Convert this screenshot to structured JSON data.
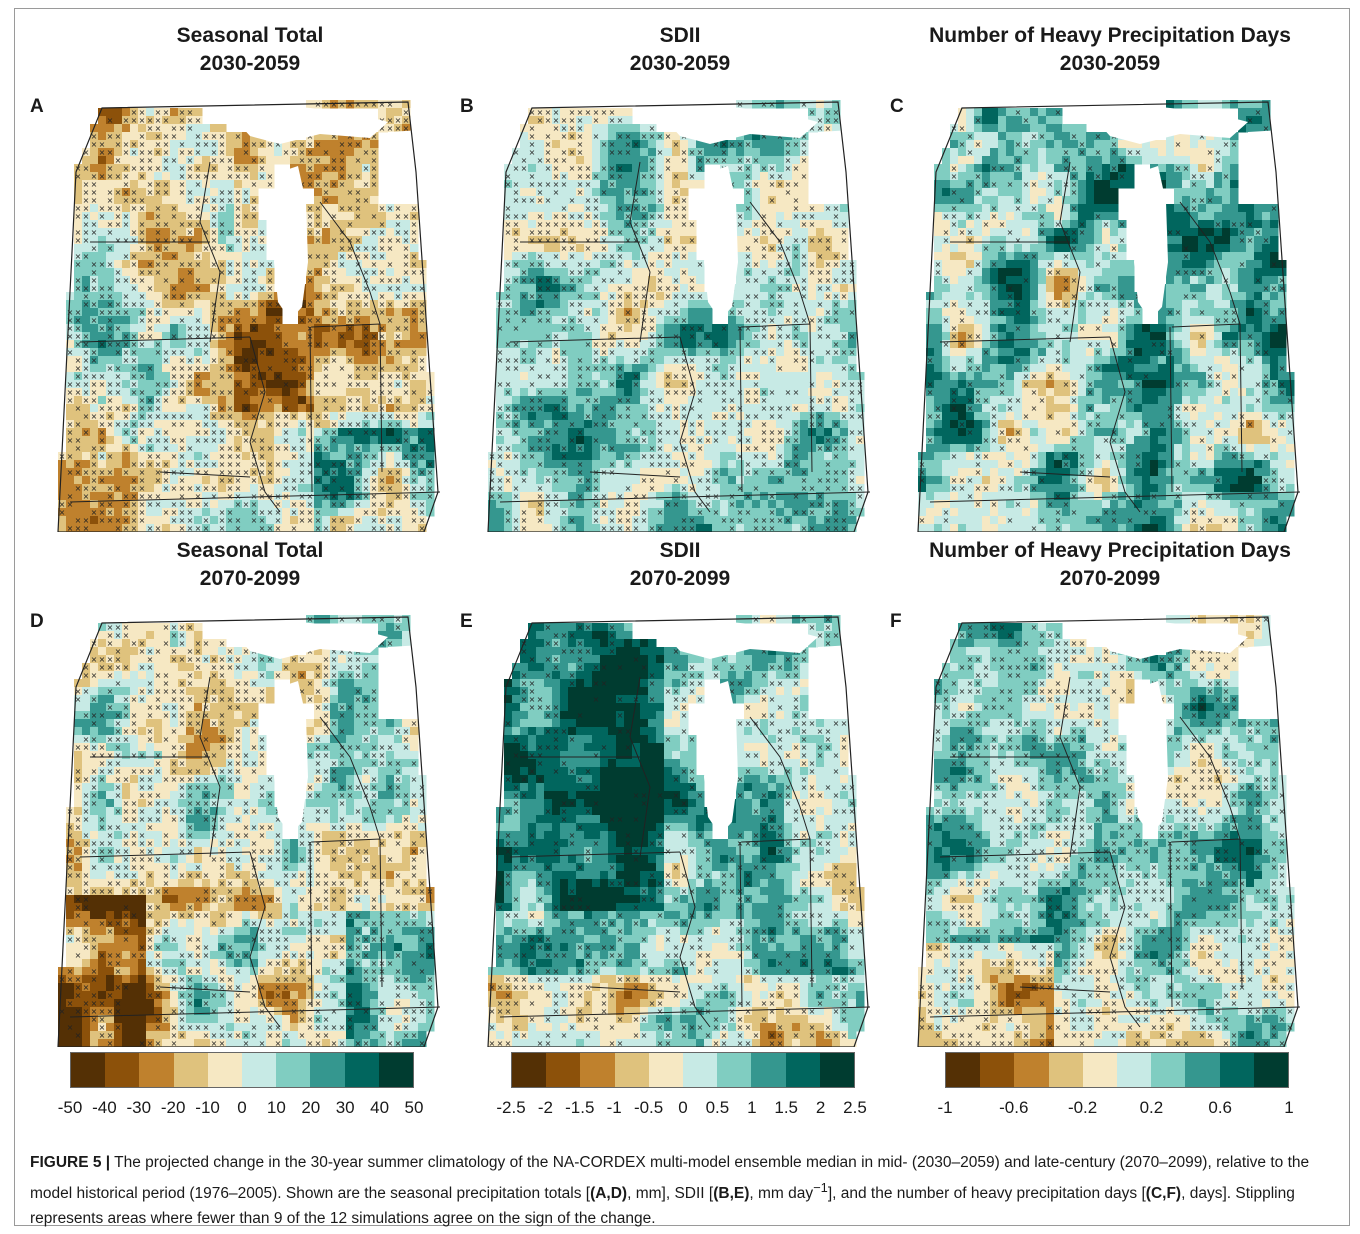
{
  "panels": [
    {
      "letter": "A",
      "title_line1": "Seasonal Total",
      "title_line2": "2030-2059",
      "scheme": "total_mid"
    },
    {
      "letter": "B",
      "title_line1": "SDII",
      "title_line2": "2030-2059",
      "scheme": "sdii_mid"
    },
    {
      "letter": "C",
      "title_line1": "Number of Heavy Precipitation Days",
      "title_line2": "2030-2059",
      "scheme": "heavy_mid"
    },
    {
      "letter": "D",
      "title_line1": "Seasonal Total",
      "title_line2": "2070-2099",
      "scheme": "total_late"
    },
    {
      "letter": "E",
      "title_line1": "SDII",
      "title_line2": "2070-2099",
      "scheme": "sdii_late"
    },
    {
      "letter": "F",
      "title_line1": "Number of Heavy Precipitation Days",
      "title_line2": "2070-2099",
      "scheme": "heavy_late"
    }
  ],
  "colorbars": [
    {
      "name": "seasonal-total",
      "ticks": [
        "-50",
        "-40",
        "-30",
        "-20",
        "-10",
        "0",
        "10",
        "20",
        "30",
        "40",
        "50"
      ]
    },
    {
      "name": "sdii",
      "ticks": [
        "-2.5",
        "-2",
        "-1.5",
        "-1",
        "-0.5",
        "0",
        "0.5",
        "1",
        "1.5",
        "2",
        "2.5"
      ]
    },
    {
      "name": "heavy-days",
      "ticks": [
        "-1",
        "-0.6",
        "-0.2",
        "0.2",
        "0.6",
        "1"
      ]
    }
  ],
  "palette": [
    "#543005",
    "#8c510a",
    "#bf812d",
    "#dfc27d",
    "#f6e8c3",
    "#c7eae5",
    "#80cdc1",
    "#35978f",
    "#01665e",
    "#003c30"
  ],
  "caption": {
    "lead": "FIGURE 5 |",
    "p1": " The projected change in the 30-year summer climatology of the NA-CORDEX multi-model ensemble median in mid- (2030–2059) and late-century (2070–2099), relative to the model historical period (1976–2005). Shown are the seasonal precipitation totals [",
    "b1": "(A,D)",
    "p2": ", mm], SDII [",
    "b2": "(B,E)",
    "p3": ", mm day",
    "sup": "−1",
    "p4": "], and the number of heavy precipitation days [",
    "b3": "(C,F)",
    "p5": ", days]. Stippling represents areas where fewer than 9 of the 12 simulations agree on the sign of the change."
  }
}
